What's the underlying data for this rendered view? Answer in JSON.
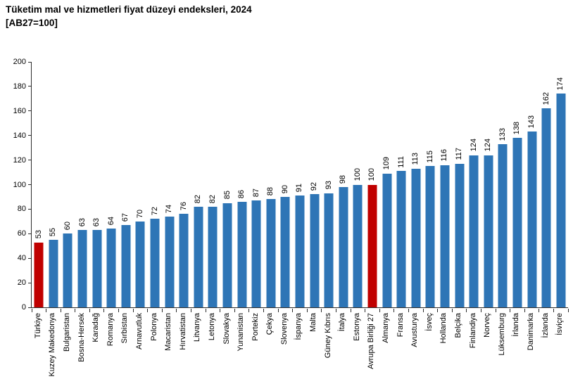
{
  "header": {
    "title": "Tüketim mal ve hizmetleri fiyat düzeyi endeksleri, 2024",
    "subtitle": "[AB27=100]"
  },
  "chart_data": {
    "type": "bar",
    "title": "Tüketim mal ve hizmetleri fiyat düzeyi endeksleri, 2024",
    "subtitle": "[AB27=100]",
    "categories": [
      "Türkiye",
      "Kuzey Makedonya",
      "Bulgaristan",
      "Bosna-Hersek",
      "Karadağ",
      "Romanya",
      "Sırbistan",
      "Arnavutluk",
      "Polonya",
      "Macaristan",
      "Hırvatistan",
      "Litvanya",
      "Letonya",
      "Slovakya",
      "Yunanistan",
      "Portekiz",
      "Çekya",
      "Slovenya",
      "İspanya",
      "Malta",
      "Güney Kıbrıs",
      "İtalya",
      "Estonya",
      "Avrupa Birliği 27",
      "Almanya",
      "Fransa",
      "Avusturya",
      "İsveç",
      "Hollanda",
      "Belçika",
      "Finlandiya",
      "Norveç",
      "Lüksemburg",
      "İrlanda",
      "Danimarka",
      "İzlanda",
      "İsviçre"
    ],
    "values": [
      53,
      55,
      60,
      63,
      63,
      64,
      67,
      70,
      72,
      74,
      76,
      82,
      82,
      85,
      86,
      87,
      88,
      90,
      91,
      92,
      93,
      98,
      100,
      100,
      109,
      111,
      113,
      115,
      116,
      117,
      124,
      124,
      133,
      138,
      143,
      162,
      174
    ],
    "highlight_indices": [
      0,
      23
    ],
    "bar_color": "#2E75B6",
    "highlight_color": "#C00000",
    "axis_color": "#2b2b2b",
    "text_color": "#000000",
    "ylim": [
      0,
      200
    ],
    "ytick_step": 20,
    "grid": false,
    "legend": "none",
    "value_labels_rotated": true,
    "xlabel": "",
    "ylabel": ""
  }
}
